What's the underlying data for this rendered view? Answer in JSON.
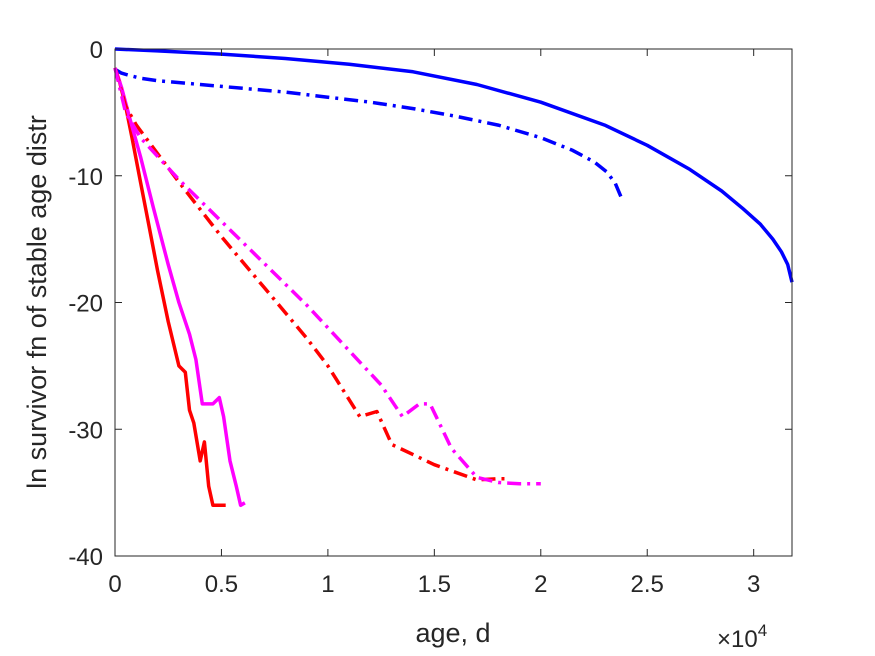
{
  "chart_data": {
    "type": "line",
    "title": "",
    "xlabel": "age, d",
    "ylabel": "ln survivor fn of stable age distr",
    "x_exponent_label": "×10",
    "x_exponent_power": "4",
    "xlim": [
      0,
      31800
    ],
    "ylim": [
      -40,
      0
    ],
    "xticks": [
      0,
      5000,
      10000,
      15000,
      20000,
      25000,
      30000
    ],
    "xtick_labels": [
      "0",
      "0.5",
      "1",
      "1.5",
      "2",
      "2.5",
      "3"
    ],
    "yticks": [
      0,
      -10,
      -20,
      -30,
      -40
    ],
    "ytick_labels": [
      "0",
      "-10",
      "-20",
      "-30",
      "-40"
    ],
    "grid": false,
    "series": [
      {
        "color": "#0000ff",
        "style": "solid",
        "x": [
          0,
          2000,
          5000,
          8000,
          11000,
          14000,
          17000,
          20000,
          23000,
          25000,
          27000,
          28500,
          29500,
          30300,
          30900,
          31300,
          31600,
          31800
        ],
        "y": [
          0,
          -0.15,
          -0.4,
          -0.75,
          -1.2,
          -1.8,
          -2.8,
          -4.2,
          -6.0,
          -7.6,
          -9.5,
          -11.2,
          -12.6,
          -13.8,
          -15.0,
          -16.0,
          -17.0,
          -18.4
        ]
      },
      {
        "color": "#0000ff",
        "style": "dashdot",
        "x": [
          0,
          300,
          700,
          1200,
          2000,
          4000,
          6000,
          8000,
          10000,
          12000,
          14000,
          16000,
          18000,
          20000,
          21500,
          22500,
          23100,
          23500,
          23800
        ],
        "y": [
          -1.6,
          -1.9,
          -2.1,
          -2.3,
          -2.5,
          -2.8,
          -3.1,
          -3.4,
          -3.8,
          -4.2,
          -4.7,
          -5.3,
          -6.0,
          -7.0,
          -8.0,
          -8.9,
          -9.7,
          -10.6,
          -11.8
        ]
      },
      {
        "color": "#ff0000",
        "style": "solid",
        "x": [
          0,
          200,
          500,
          800,
          1200,
          1600,
          2000,
          2500,
          3000,
          3300,
          3500,
          3700,
          4000,
          4200,
          4400,
          4600,
          4800,
          5000,
          5200
        ],
        "y": [
          -1.5,
          -2.5,
          -4.5,
          -7.0,
          -10.5,
          -14.0,
          -17.5,
          -21.5,
          -25.0,
          -25.5,
          -28.5,
          -29.5,
          -32.5,
          -31.0,
          -34.5,
          -36.0,
          -36.0,
          -36.0,
          -36.0
        ]
      },
      {
        "color": "#ff00ff",
        "style": "solid",
        "x": [
          0,
          300,
          700,
          1200,
          1800,
          2500,
          3000,
          3500,
          3800,
          4100,
          4300,
          4600,
          4900,
          5100,
          5400,
          5700,
          5900,
          6100
        ],
        "y": [
          -1.5,
          -3.0,
          -5.5,
          -8.5,
          -12.5,
          -17.0,
          -20.0,
          -22.5,
          -24.5,
          -28.0,
          -28.0,
          -28.0,
          -27.5,
          -29.0,
          -32.5,
          -34.5,
          -36.0,
          -35.8
        ]
      },
      {
        "color": "#ff0000",
        "style": "dashdot",
        "x": [
          0,
          500,
          1000,
          3000,
          5000,
          7000,
          9000,
          10000,
          11500,
          12300,
          13000,
          14000,
          15000,
          16000,
          17000,
          18000,
          18500
        ],
        "y": [
          -1.5,
          -4.5,
          -6.0,
          -10.5,
          -14.8,
          -18.8,
          -22.8,
          -25.0,
          -29.0,
          -28.6,
          -31.2,
          -32.0,
          -32.8,
          -33.4,
          -34.0,
          -33.9,
          -33.9
        ]
      },
      {
        "color": "#ff00ff",
        "style": "dashdot",
        "x": [
          0,
          500,
          1200,
          3000,
          5000,
          7000,
          9000,
          11000,
          12500,
          13500,
          14300,
          14800,
          15800,
          17000,
          18000,
          19000,
          20000
        ],
        "y": [
          -1.5,
          -5.0,
          -7.0,
          -10.3,
          -13.6,
          -16.9,
          -20.2,
          -23.8,
          -26.5,
          -29.0,
          -28.0,
          -28.0,
          -31.5,
          -33.8,
          -34.2,
          -34.3,
          -34.3
        ]
      }
    ]
  }
}
